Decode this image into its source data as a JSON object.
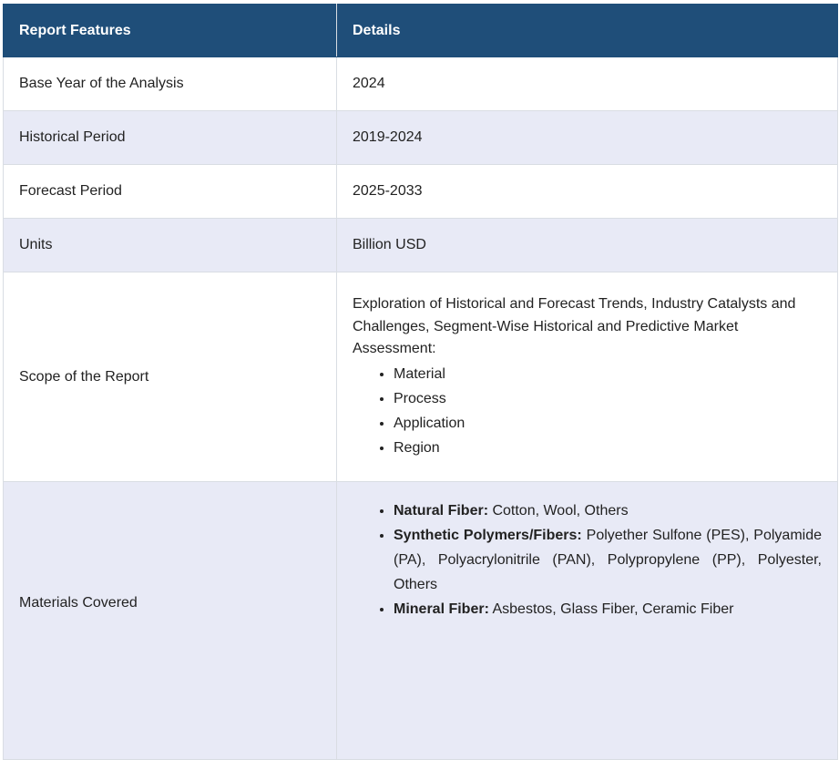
{
  "table": {
    "header": {
      "col1": "Report Features",
      "col2": "Details"
    },
    "rows": [
      {
        "feature": "Base Year of the Analysis",
        "detail": "2024"
      },
      {
        "feature": "Historical Period",
        "detail": "2019-2024"
      },
      {
        "feature": "Forecast Period",
        "detail": "2025-2033"
      },
      {
        "feature": "Units",
        "detail": "Billion USD"
      }
    ],
    "scope": {
      "feature": "Scope of the Report",
      "description": "Exploration of Historical and Forecast Trends, Industry Catalysts and Challenges, Segment-Wise Historical and Predictive Market Assessment:",
      "items": [
        "Material",
        "Process",
        "Application",
        "Region"
      ]
    },
    "materials": {
      "feature": "Materials Covered",
      "items": [
        {
          "label": "Natural Fiber:",
          "text": " Cotton, Wool, Others"
        },
        {
          "label": "Synthetic Polymers/Fibers:",
          "text": " Polyether Sulfone (PES), Polyamide (PA), Polyacrylonitrile (PAN), Polypropylene (PP), Polyester, Others"
        },
        {
          "label": "Mineral Fiber:",
          "text": " Asbestos, Glass Fiber, Ceramic Fiber"
        }
      ]
    },
    "colors": {
      "header_bg": "#1f4e79",
      "stripe_bg": "#e8eaf6",
      "border": "#d9dde3"
    }
  }
}
